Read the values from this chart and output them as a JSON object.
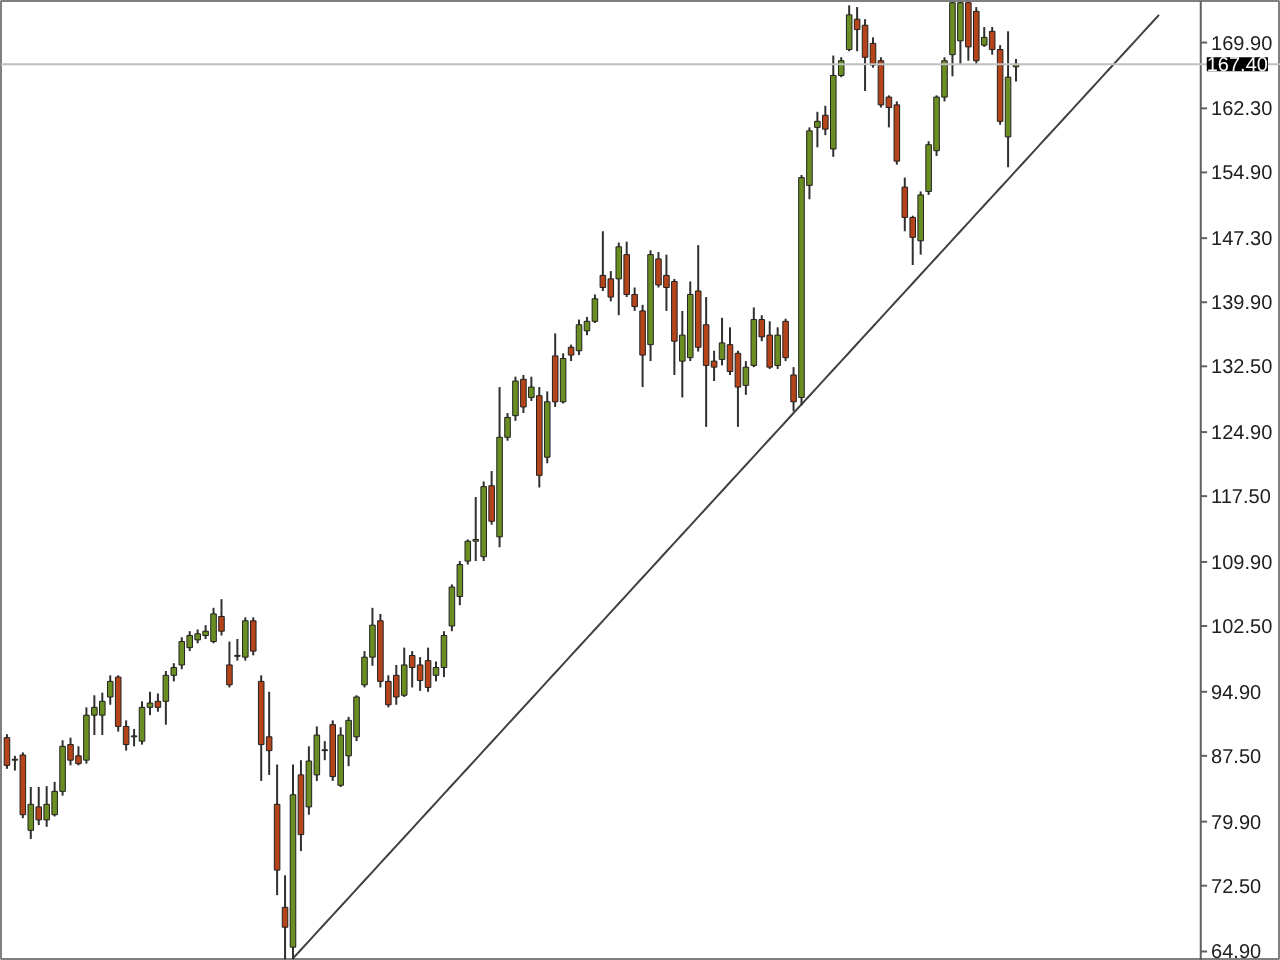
{
  "chart_data": {
    "type": "candlestick",
    "categories": [
      null,
      null,
      null,
      null,
      null,
      null,
      null,
      null,
      null,
      null,
      null,
      null,
      null,
      null,
      null,
      null,
      null,
      null,
      null,
      null,
      null,
      null,
      null,
      null,
      null,
      null,
      null,
      null,
      null,
      null,
      null,
      null,
      null,
      null,
      null,
      null,
      null,
      null,
      null,
      null,
      null,
      null,
      null,
      null,
      null,
      null,
      null,
      null,
      null,
      null,
      null,
      null,
      null,
      null,
      null,
      null,
      null,
      null,
      null,
      null,
      null,
      null,
      null,
      null,
      null,
      null,
      null,
      null,
      null,
      null,
      null,
      null,
      null,
      null,
      null,
      null,
      null,
      null,
      null,
      null,
      null,
      null,
      null,
      null,
      null,
      null,
      null,
      null,
      null,
      null,
      null,
      null,
      null,
      null,
      null,
      null,
      null,
      null,
      null,
      null,
      null,
      null,
      null,
      null,
      null,
      null,
      null,
      null,
      null,
      null,
      null,
      null,
      null,
      null,
      null,
      null,
      null,
      null,
      null,
      null,
      null,
      null,
      null,
      null,
      null,
      null,
      null,
      null,
      null,
      null,
      null,
      null,
      null,
      null,
      null,
      null,
      null,
      null,
      null,
      null,
      null,
      null,
      null,
      null,
      null,
      null,
      null,
      null,
      null,
      null,
      null
    ],
    "ohlc": [
      [
        89.6,
        90.0,
        86.0,
        86.4
      ],
      [
        87.0,
        87.5,
        85.8,
        87.1
      ],
      [
        87.6,
        87.9,
        80.3,
        80.7
      ],
      [
        78.9,
        83.9,
        77.9,
        81.9
      ],
      [
        81.6,
        83.9,
        79.5,
        80.1
      ],
      [
        80.1,
        84.0,
        79.3,
        81.9
      ],
      [
        80.7,
        84.5,
        80.5,
        83.4
      ],
      [
        83.4,
        89.3,
        82.9,
        88.6
      ],
      [
        88.8,
        89.6,
        86.4,
        87.0
      ],
      [
        87.5,
        88.6,
        86.4,
        86.6
      ],
      [
        87.0,
        93.1,
        86.6,
        92.2
      ],
      [
        92.2,
        94.5,
        89.9,
        93.1
      ],
      [
        92.2,
        94.8,
        89.9,
        93.8
      ],
      [
        94.3,
        96.8,
        93.4,
        96.1
      ],
      [
        96.6,
        96.8,
        90.3,
        90.9
      ],
      [
        90.9,
        91.6,
        88.1,
        88.8
      ],
      [
        89.7,
        90.6,
        88.6,
        89.8
      ],
      [
        89.2,
        93.8,
        88.8,
        93.1
      ],
      [
        93.1,
        94.9,
        92.2,
        93.6
      ],
      [
        93.8,
        94.7,
        92.6,
        93.1
      ],
      [
        93.8,
        97.3,
        91.1,
        96.8
      ],
      [
        96.8,
        98.2,
        96.1,
        97.7
      ],
      [
        98.0,
        101.2,
        97.5,
        100.7
      ],
      [
        100.0,
        101.9,
        99.6,
        101.4
      ],
      [
        100.9,
        102.1,
        100.5,
        101.6
      ],
      [
        101.4,
        102.6,
        101.0,
        101.9
      ],
      [
        100.7,
        104.6,
        100.5,
        103.9
      ],
      [
        103.6,
        105.6,
        101.4,
        101.9
      ],
      [
        98.0,
        100.7,
        95.4,
        95.7
      ],
      [
        99.0,
        101.0,
        98.5,
        99.1
      ],
      [
        98.9,
        103.5,
        98.5,
        103.1
      ],
      [
        103.1,
        103.5,
        99.1,
        99.6
      ],
      [
        96.1,
        96.8,
        84.6,
        88.8
      ],
      [
        89.7,
        94.9,
        85.3,
        88.1
      ],
      [
        81.9,
        86.5,
        71.4,
        74.3
      ],
      [
        70.0,
        73.7,
        64.0,
        67.7
      ],
      [
        65.4,
        86.5,
        64.0,
        83.0
      ],
      [
        85.3,
        87.0,
        76.5,
        78.4
      ],
      [
        81.6,
        88.6,
        80.7,
        86.9
      ],
      [
        85.3,
        90.9,
        84.6,
        89.9
      ],
      [
        88.1,
        89.2,
        87.0,
        88.2
      ],
      [
        91.1,
        91.6,
        84.6,
        85.1
      ],
      [
        84.1,
        90.8,
        83.9,
        89.9
      ],
      [
        87.5,
        92.0,
        86.3,
        91.6
      ],
      [
        89.7,
        94.5,
        89.2,
        94.3
      ],
      [
        95.7,
        99.6,
        95.4,
        98.9
      ],
      [
        98.9,
        104.6,
        97.9,
        102.6
      ],
      [
        103.1,
        103.9,
        95.4,
        96.1
      ],
      [
        96.1,
        96.8,
        93.1,
        93.4
      ],
      [
        96.8,
        98.0,
        93.4,
        94.3
      ],
      [
        94.5,
        100.0,
        94.3,
        98.0
      ],
      [
        99.1,
        99.6,
        95.4,
        97.7
      ],
      [
        98.0,
        98.9,
        95.0,
        96.2
      ],
      [
        98.5,
        100.0,
        94.9,
        95.4
      ],
      [
        96.8,
        98.4,
        96.1,
        97.7
      ],
      [
        97.7,
        101.9,
        96.6,
        101.4
      ],
      [
        102.5,
        107.3,
        101.9,
        107.0
      ],
      [
        105.9,
        110.0,
        104.9,
        109.6
      ],
      [
        110.0,
        112.5,
        109.6,
        112.3
      ],
      [
        112.3,
        117.4,
        110.0,
        112.5
      ],
      [
        110.5,
        119.2,
        110.0,
        118.6
      ],
      [
        118.7,
        120.4,
        114.2,
        114.6
      ],
      [
        112.8,
        130.1,
        111.6,
        124.3
      ],
      [
        124.3,
        127.1,
        123.9,
        126.6
      ],
      [
        126.8,
        131.3,
        126.2,
        130.8
      ],
      [
        131.0,
        131.5,
        127.1,
        127.8
      ],
      [
        128.9,
        131.3,
        128.5,
        130.1
      ],
      [
        129.1,
        130.1,
        118.5,
        119.9
      ],
      [
        122.0,
        129.6,
        121.3,
        128.4
      ],
      [
        133.7,
        136.3,
        127.8,
        128.4
      ],
      [
        128.4,
        134.0,
        128.2,
        133.4
      ],
      [
        134.7,
        135.0,
        133.1,
        133.8
      ],
      [
        134.3,
        137.9,
        133.8,
        137.3
      ],
      [
        136.6,
        138.2,
        136.1,
        137.7
      ],
      [
        137.7,
        140.8,
        137.5,
        140.3
      ],
      [
        143.0,
        148.1,
        141.2,
        141.6
      ],
      [
        142.6,
        143.5,
        140.0,
        140.5
      ],
      [
        142.6,
        146.8,
        138.4,
        146.3
      ],
      [
        145.4,
        146.9,
        140.5,
        140.8
      ],
      [
        140.8,
        141.6,
        138.9,
        139.4
      ],
      [
        138.9,
        139.6,
        130.1,
        133.8
      ],
      [
        135.0,
        145.9,
        133.1,
        145.4
      ],
      [
        144.9,
        145.7,
        141.6,
        141.9
      ],
      [
        143.0,
        145.4,
        138.9,
        141.6
      ],
      [
        142.3,
        142.6,
        131.5,
        135.4
      ],
      [
        133.1,
        138.9,
        128.9,
        136.1
      ],
      [
        133.5,
        142.3,
        133.1,
        140.8
      ],
      [
        141.2,
        146.5,
        134.2,
        134.7
      ],
      [
        137.3,
        140.5,
        125.5,
        132.6
      ],
      [
        133.1,
        134.3,
        130.8,
        132.4
      ],
      [
        133.3,
        138.1,
        132.6,
        135.2
      ],
      [
        135.0,
        137.0,
        131.5,
        131.9
      ],
      [
        134.0,
        134.3,
        125.5,
        130.1
      ],
      [
        130.3,
        133.1,
        129.2,
        132.4
      ],
      [
        132.6,
        139.3,
        132.4,
        137.9
      ],
      [
        137.9,
        138.4,
        135.4,
        135.9
      ],
      [
        136.1,
        137.7,
        132.2,
        132.4
      ],
      [
        132.6,
        137.0,
        132.2,
        136.1
      ],
      [
        137.7,
        138.0,
        133.1,
        133.5
      ],
      [
        131.5,
        132.4,
        127.3,
        128.4
      ],
      [
        128.9,
        154.6,
        128.0,
        154.3
      ],
      [
        153.4,
        160.1,
        151.8,
        159.7
      ],
      [
        160.1,
        161.9,
        157.8,
        160.8
      ],
      [
        161.5,
        162.6,
        159.2,
        159.9
      ],
      [
        157.6,
        168.4,
        156.7,
        166.1
      ],
      [
        166.1,
        168.2,
        165.9,
        167.8
      ],
      [
        169.1,
        174.2,
        168.9,
        173.1
      ],
      [
        172.6,
        174.0,
        168.9,
        171.4
      ],
      [
        171.9,
        172.6,
        164.3,
        168.2
      ],
      [
        169.8,
        170.5,
        167.0,
        167.3
      ],
      [
        167.8,
        168.2,
        162.4,
        162.7
      ],
      [
        163.6,
        163.8,
        160.1,
        162.4
      ],
      [
        162.7,
        163.1,
        155.8,
        156.2
      ],
      [
        153.2,
        154.3,
        148.1,
        149.7
      ],
      [
        149.7,
        149.9,
        144.2,
        147.4
      ],
      [
        147.0,
        152.7,
        145.4,
        152.3
      ],
      [
        152.7,
        158.5,
        152.3,
        158.1
      ],
      [
        157.4,
        163.8,
        156.8,
        163.6
      ],
      [
        163.6,
        168.2,
        163.1,
        167.8
      ],
      [
        168.5,
        174.6,
        166.0,
        174.5
      ],
      [
        170.1,
        174.6,
        167.3,
        174.5
      ],
      [
        174.5,
        174.6,
        167.8,
        169.4
      ],
      [
        173.5,
        174.0,
        167.3,
        167.8
      ],
      [
        169.6,
        171.7,
        169.4,
        170.5
      ],
      [
        171.2,
        171.7,
        168.5,
        169.1
      ],
      [
        169.1,
        169.6,
        160.4,
        160.8
      ],
      [
        159.0,
        171.2,
        155.5,
        165.9
      ],
      [
        167.1,
        168.0,
        165.4,
        167.4
      ],
      null,
      null,
      null,
      null,
      null,
      null,
      null,
      null,
      null,
      null,
      null,
      null,
      null,
      null,
      null,
      null,
      null,
      null,
      null,
      null,
      null,
      null,
      null
    ],
    "colors": [
      "#b5441a",
      "#6b8e23",
      "#b5441a",
      "#6b8e23",
      "#b5441a",
      "#6b8e23",
      "#6b8e23",
      "#6b8e23",
      "#b5441a",
      "#b5441a",
      "#6b8e23",
      "#6b8e23",
      "#6b8e23",
      "#6b8e23",
      "#b5441a",
      "#b5441a",
      "#6b8e23",
      "#6b8e23",
      "#6b8e23",
      "#b5441a",
      "#6b8e23",
      "#6b8e23",
      "#6b8e23",
      "#6b8e23",
      "#6b8e23",
      "#6b8e23",
      "#6b8e23",
      "#b5441a",
      "#b5441a",
      "#6b8e23",
      "#6b8e23",
      "#b5441a",
      "#b5441a",
      "#b5441a",
      "#b5441a",
      "#b5441a",
      "#6b8e23",
      "#b5441a",
      "#6b8e23",
      "#6b8e23",
      "#6b8e23",
      "#b5441a",
      "#6b8e23",
      "#6b8e23",
      "#6b8e23",
      "#6b8e23",
      "#6b8e23",
      "#b5441a",
      "#b5441a",
      "#b5441a",
      "#6b8e23",
      "#b5441a",
      "#b5441a",
      "#b5441a",
      "#6b8e23",
      "#6b8e23",
      "#6b8e23",
      "#6b8e23",
      "#6b8e23",
      "#6b8e23",
      "#6b8e23",
      "#b5441a",
      "#6b8e23",
      "#6b8e23",
      "#6b8e23",
      "#b5441a",
      "#6b8e23",
      "#b5441a",
      "#6b8e23",
      "#b5441a",
      "#6b8e23",
      "#b5441a",
      "#6b8e23",
      "#6b8e23",
      "#6b8e23",
      "#b5441a",
      "#b5441a",
      "#6b8e23",
      "#b5441a",
      "#b5441a",
      "#b5441a",
      "#6b8e23",
      "#b5441a",
      "#b5441a",
      "#b5441a",
      "#6b8e23",
      "#6b8e23",
      "#b5441a",
      "#b5441a",
      "#b5441a",
      "#6b8e23",
      "#b5441a",
      "#b5441a",
      "#6b8e23",
      "#6b8e23",
      "#b5441a",
      "#b5441a",
      "#6b8e23",
      "#b5441a",
      "#b5441a",
      "#6b8e23",
      "#6b8e23",
      "#6b8e23",
      "#b5441a",
      "#6b8e23",
      "#6b8e23",
      "#6b8e23",
      "#b5441a",
      "#b5441a",
      "#b5441a",
      "#b5441a",
      "#b5441a",
      "#b5441a",
      "#b5441a",
      "#b5441a",
      "#6b8e23",
      "#6b8e23",
      "#6b8e23",
      "#6b8e23",
      "#6b8e23",
      "#6b8e23",
      "#b5441a",
      "#b5441a",
      "#6b8e23",
      "#b5441a",
      "#b5441a",
      "#6b8e23",
      "#6b8e23",
      null,
      null,
      null,
      null,
      null,
      null,
      null,
      null,
      null,
      null,
      null,
      null,
      null,
      null,
      null,
      null,
      null,
      null,
      null,
      null,
      null,
      null,
      null
    ],
    "series": [
      {
        "type": "line",
        "color": "#404040",
        "values": [
          null,
          null,
          null,
          null,
          null,
          null,
          null,
          null,
          null,
          null,
          null,
          null,
          null,
          null,
          null,
          null,
          null,
          null,
          null,
          null,
          null,
          null,
          null,
          null,
          null,
          null,
          null,
          null,
          null,
          null,
          null,
          null,
          null,
          null,
          null,
          null,
          64.1,
          65.1,
          66.1,
          67.1,
          68.1,
          69.1,
          70.1,
          71.1,
          72.1,
          73.1,
          74.1,
          75.1,
          76.1,
          77.1,
          78.1,
          79.1,
          80.1,
          81.1,
          82.1,
          83.1,
          84.1,
          85.1,
          86.1,
          87.1,
          88.1,
          89.1,
          90.1,
          91.1,
          92.1,
          93.1,
          94.1,
          95.1,
          96.1,
          97.1,
          98.1,
          99.1,
          100.1,
          101.1,
          102.1,
          103.1,
          104.1,
          105.1,
          106.1,
          107.1,
          108.1,
          109.1,
          110.1,
          111.1,
          112.1,
          113.1,
          114.1,
          115.1,
          116.1,
          117.1,
          118.1,
          119.1,
          120.1,
          121.1,
          122.1,
          123.1,
          124.1,
          125.1,
          126.1,
          127.1,
          128.1,
          129.1,
          130.1,
          131.1,
          132.1,
          133.1,
          134.1,
          135.1,
          136.1,
          137.1,
          138.1,
          139.1,
          140.1,
          141.1,
          142.1,
          143.1,
          144.1,
          145.1,
          146.1,
          147.1,
          148.1,
          149.1,
          150.1,
          151.1,
          152.1,
          153.1,
          154.1,
          155.1,
          156.1,
          157.1,
          158.1,
          159.1,
          160.1,
          161.1,
          162.1,
          163.1,
          164.1,
          165.1,
          166.1,
          167.1,
          168.1,
          169.1,
          170.1,
          171.1,
          172.1,
          173.1,
          null,
          null,
          null,
          null,
          null
        ]
      }
    ],
    "ylim": [
      63.8,
      174.7
    ],
    "yticks": [
      {
        "value": 64.9,
        "label": "64.90"
      },
      {
        "value": 72.5,
        "label": "72.50"
      },
      {
        "value": 79.9,
        "label": "79.90"
      },
      {
        "value": 87.5,
        "label": "87.50"
      },
      {
        "value": 94.9,
        "label": "94.90"
      },
      {
        "value": 102.5,
        "label": "102.50"
      },
      {
        "value": 109.9,
        "label": "109.90"
      },
      {
        "value": 117.5,
        "label": "117.50"
      },
      {
        "value": 124.9,
        "label": "124.90"
      },
      {
        "value": 132.5,
        "label": "132.50"
      },
      {
        "value": 139.9,
        "label": "139.90"
      },
      {
        "value": 147.3,
        "label": "147.30"
      },
      {
        "value": 154.9,
        "label": "154.90"
      },
      {
        "value": 162.3,
        "label": "162.30"
      },
      {
        "value": 169.9,
        "label": "169.90"
      }
    ],
    "ref_lines": [
      {
        "axis": "y",
        "value": 167.4,
        "label": "167.40",
        "color": "#c0c0c0"
      }
    ],
    "tick_labels": "y",
    "grid": false,
    "legend": false
  }
}
